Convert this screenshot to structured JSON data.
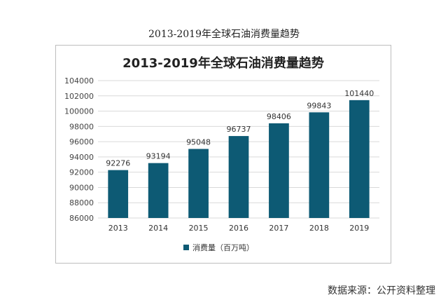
{
  "page_title": "2013-2019年全球石油消费量趋势",
  "source_note": "数据来源：公开资料整理",
  "chart_data": {
    "type": "bar",
    "title": "2013-2019年全球石油消费量趋势",
    "categories": [
      "2013",
      "2014",
      "2015",
      "2016",
      "2017",
      "2018",
      "2019"
    ],
    "series": [
      {
        "name": "消费量（百万吨）",
        "values": [
          92276,
          93194,
          95048,
          96737,
          98406,
          99843,
          101440
        ]
      }
    ],
    "data_labels": [
      "92276",
      "93194",
      "95048",
      "96737",
      "98406",
      "99843",
      "101440"
    ],
    "ylim": [
      86000,
      104000
    ],
    "yticks": [
      86000,
      88000,
      90000,
      92000,
      94000,
      96000,
      98000,
      100000,
      102000,
      104000
    ],
    "ytick_labels": [
      "86000",
      "88000",
      "90000",
      "92000",
      "94000",
      "96000",
      "98000",
      "100000",
      "102000",
      "104000"
    ],
    "grid": true,
    "legend_position": "bottom",
    "bar_color": "#0d5a74",
    "grid_color": "#d9d9d9"
  }
}
